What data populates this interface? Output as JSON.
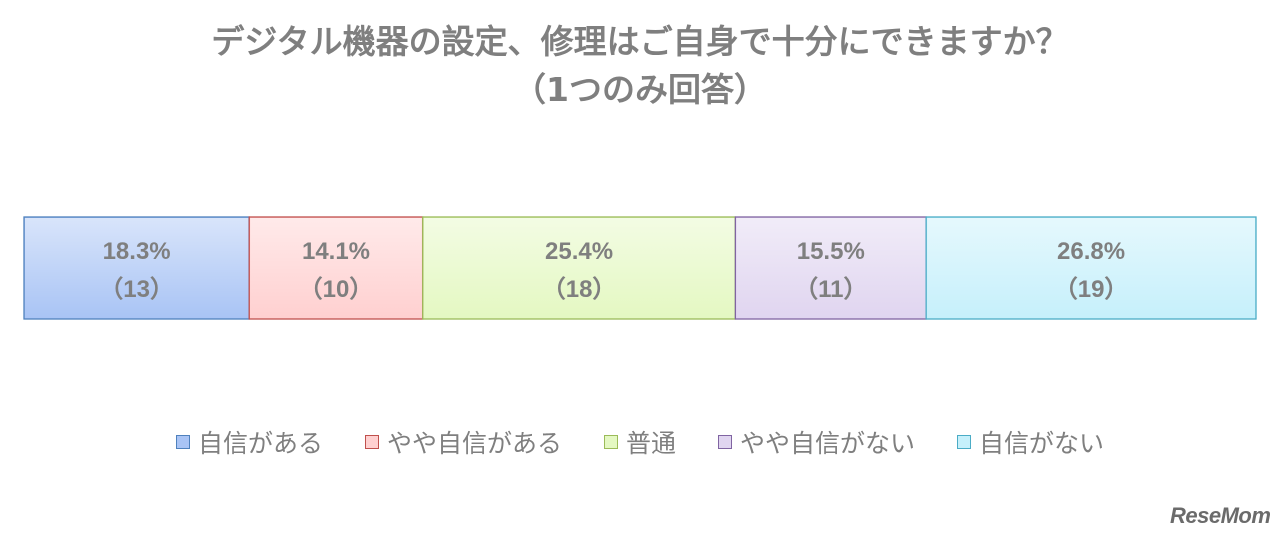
{
  "chart_data": {
    "type": "bar",
    "orientation": "horizontal-stacked-100",
    "title": "デジタル機器の設定、修理はご自身で十分にできますか？",
    "subtitle": "（1つのみ回答）",
    "xlabel": "",
    "ylabel": "",
    "grid": false,
    "legend_position": "bottom",
    "series": [
      {
        "name": "自信がある",
        "value": 18.3,
        "count": 13,
        "value_label": "18.3%",
        "count_label": "（13）",
        "fill": "#a9c4f5",
        "stroke": "#4f81bd"
      },
      {
        "name": "やや自信がある",
        "value": 14.1,
        "count": 10,
        "value_label": "14.1%",
        "count_label": "（10）",
        "fill": "#ffd0d0",
        "stroke": "#c0504d"
      },
      {
        "name": "普通",
        "value": 25.4,
        "count": 18,
        "value_label": "25.4%",
        "count_label": "（18）",
        "fill": "#e4f8c2",
        "stroke": "#9bbb59"
      },
      {
        "name": "やや自信がない",
        "value": 15.5,
        "count": 11,
        "value_label": "15.5%",
        "count_label": "（11）",
        "fill": "#e0d5f0",
        "stroke": "#8064a2"
      },
      {
        "name": "自信がない",
        "value": 26.8,
        "count": 19,
        "value_label": "26.8%",
        "count_label": "（19）",
        "fill": "#c6f0fb",
        "stroke": "#4bacc6"
      }
    ]
  },
  "brand": "ReseMom"
}
